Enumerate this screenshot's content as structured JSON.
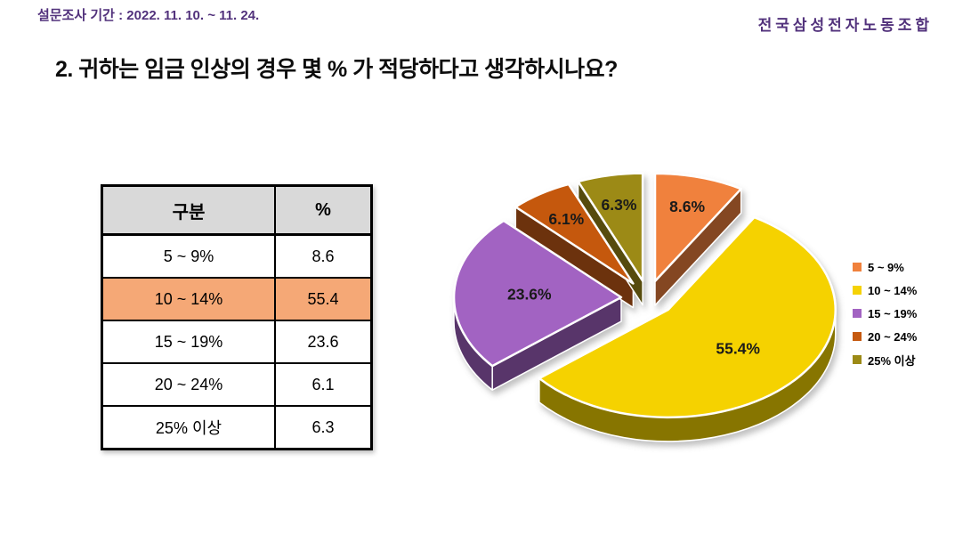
{
  "header": {
    "survey_period": "설문조사 기간 : 2022. 11. 10. ~ 11. 24.",
    "org_name": "전국삼성전자노동조합",
    "accent_color": "#52327C"
  },
  "title": "2. 귀하는 임금 인상의 경우 몇 % 가 적당하다고 생각하시나요?",
  "table": {
    "headers": [
      "구분",
      "%"
    ],
    "header_bg": "#D9D9D9",
    "highlight_bg": "#F5A876",
    "rows": [
      {
        "label": "5 ~ 9%",
        "value": "8.6",
        "highlight": false
      },
      {
        "label": "10 ~ 14%",
        "value": "55.4",
        "highlight": true
      },
      {
        "label": "15 ~ 19%",
        "value": "23.6",
        "highlight": false
      },
      {
        "label": "20 ~ 24%",
        "value": "6.1",
        "highlight": false
      },
      {
        "label": "25% 이상",
        "value": "6.3",
        "highlight": false
      }
    ]
  },
  "chart_data": {
    "type": "pie",
    "style": "3d-exploded",
    "start_angle_deg": 0,
    "direction": "clockwise",
    "categories": [
      "5 ~ 9%",
      "10 ~ 14%",
      "15 ~ 19%",
      "20 ~ 24%",
      "25% 이상"
    ],
    "values": [
      8.6,
      55.4,
      23.6,
      6.1,
      6.3
    ],
    "labels": [
      "8.6%",
      "55.4%",
      "23.6%",
      "6.1%",
      "6.3%"
    ],
    "colors": [
      "#F0813C",
      "#F5D205",
      "#A263C2",
      "#C5590F",
      "#9C8A16"
    ],
    "label_color": "#1a1a1a",
    "legend_position": "right"
  }
}
